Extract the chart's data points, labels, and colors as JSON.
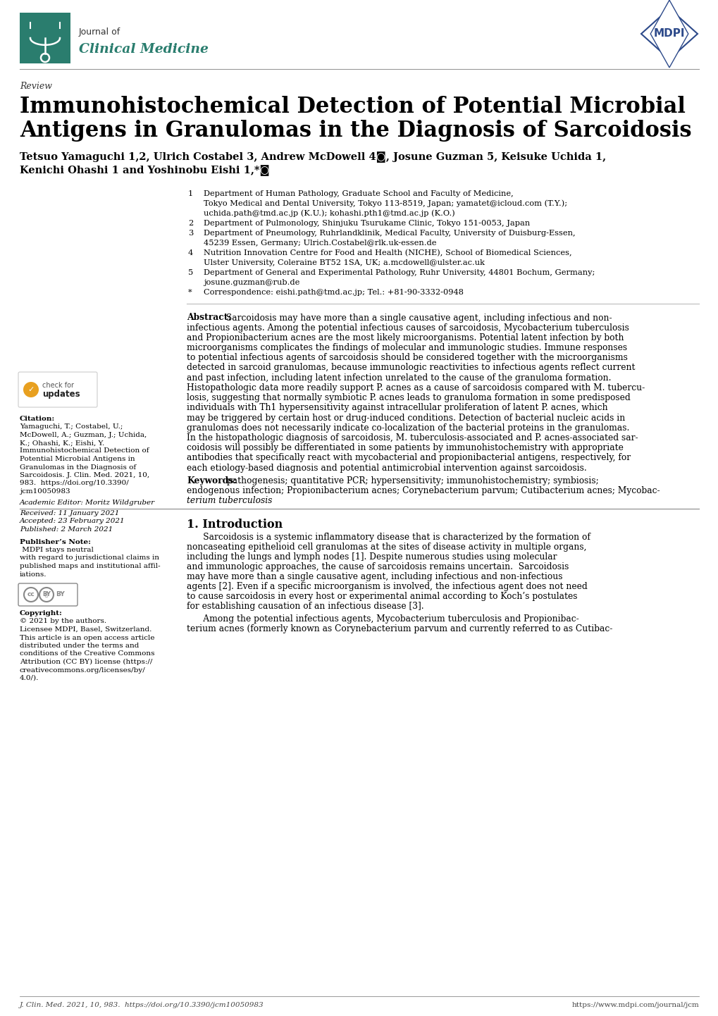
{
  "journal_name_top": "Journal of",
  "journal_name_bottom": "Clinical Medicine",
  "journal_color": "#2a7d6e",
  "mdpi_color": "#2d4a8a",
  "review_label": "Review",
  "title_line1": "Immunohistochemical Detection of Potential Microbial",
  "title_line2": "Antigens in Granulomas in the Diagnosis of Sarcoidosis",
  "authors_line1": "Tetsuo Yamaguchi 1,2, Ulrich Costabel 3, Andrew McDowell 4◙, Josune Guzman 5, Keisuke Uchida 1,",
  "authors_line2": "Kenichi Ohashi 1 and Yoshinobu Eishi 1,*◙",
  "aff1_num": "1",
  "aff1_text": "Department of Human Pathology, Graduate School and Faculty of Medicine,",
  "aff1_text2": "Tokyo Medical and Dental University, Tokyo 113-8519, Japan; yamatet@icloud.com (T.Y.);",
  "aff1_text3": "uchida.path@tmd.ac.jp (K.U.); kohashi.pth1@tmd.ac.jp (K.O.)",
  "aff2_num": "2",
  "aff2_text": "Department of Pulmonology, Shinjuku Tsurukame Clinic, Tokyo 151-0053, Japan",
  "aff3_num": "3",
  "aff3_text": "Department of Pneumology, Ruhrlandklinik, Medical Faculty, University of Duisburg-Essen,",
  "aff3_text2": "45239 Essen, Germany; Ulrich.Costabel@rlk.uk-essen.de",
  "aff4_num": "4",
  "aff4_text": "Nutrition Innovation Centre for Food and Health (NICHE), School of Biomedical Sciences,",
  "aff4_text2": "Ulster University, Coleraine BT52 1SA, UK; a.mcdowell@ulster.ac.uk",
  "aff5_num": "5",
  "aff5_text": "Department of General and Experimental Pathology, Ruhr University, 44801 Bochum, Germany;",
  "aff5_text2": "josune.guzman@rub.de",
  "aff_star_num": "*",
  "aff_star_text": "Correspondence: eishi.path@tmd.ac.jp; Tel.: +81-90-3332-0948",
  "abstract_label": "Abstract:",
  "abstract_body": "Sarcoidosis may have more than a single causative agent, including infectious and non-infectious agents. Among the potential infectious causes of sarcoidosis, Mycobacterium tuberculosis and Propionibacterium acnes are the most likely microorganisms. Potential latent infection by both microorganisms complicates the findings of molecular and immunologic studies. Immune responses to potential infectious agents of sarcoidosis should be considered together with the microorganisms detected in sarcoid granulomas, because immunologic reactivities to infectious agents reflect current and past infection, including latent infection unrelated to the cause of the granuloma formation. Histopathologic data more readily support P. acnes as a cause of sarcoidosis compared with M. tuberculosis, suggesting that normally symbiotic P. acnes leads to granuloma formation in some predisposed individuals with Th1 hypersensitivity against intracellular proliferation of latent P. acnes, which may be triggered by certain host or drug-induced conditions. Detection of bacterial nucleic acids in granulomas does not necessarily indicate co-localization of the bacterial proteins in the granulomas. In the histopathologic diagnosis of sarcoidosis, M. tuberculosis-associated and P. acnes-associated sarcoidosis will possibly be differentiated in some patients by immunohistochemistry with appropriate antibodies that specifically react with mycobacterial and propionibacterial antigens, respectively, for each etiology-based diagnosis and potential antimicrobial intervention against sarcoidosis.",
  "keywords_label": "Keywords:",
  "keywords_body": "pathogenesis; quantitative PCR; hypersensitivity; immunohistochemistry; symbiosis; endogenous infection; Propionibacterium acnes; Corynebacterium parvum; Cutibacterium acnes; Mycobacterium tuberculosis",
  "section1_title": "1. Introduction",
  "intro_p1": "Sarcoidosis is a systemic inflammatory disease that is characterized by the formation of noncaseating epithelioid cell granulomas at the sites of disease activity in multiple organs, including the lungs and lymph nodes [1]. Despite numerous studies using molecular and immunologic approaches, the cause of sarcoidosis remains uncertain.  Sarcoidosis may have more than a single causative agent, including infectious and non-infectious agents [2]. Even if a specific microorganism is involved, the infectious agent does not need to cause sarcoidosis in every host or experimental animal according to Koch’s postulates for establishing causation of an infectious disease [3].",
  "intro_p2": "Among the potential infectious agents, Mycobacterium tuberculosis and Propionibacterium acnes (formerly known as Corynebacterium parvum and currently referred to as Cutibac-",
  "sidebar_citation_bold": "Citation:",
  "sidebar_citation_text": " Yamaguchi, T.; Costabel, U.; McDowell, A.; Guzman, J.; Uchida, K.; Ohashi, K.; Eishi, Y. Immunohistochemical Detection of Potential Microbial Antigens in Granulomas in the Diagnosis of Sarcoidosis. J. Clin. Med. 2021, 10, 983.  https://doi.org/10.3390/jcm10050983",
  "sidebar_editor": "Academic Editor: Moritz Wildgruber",
  "sidebar_received": "Received: 11 January 2021",
  "sidebar_accepted": "Accepted: 23 February 2021",
  "sidebar_published": "Published: 2 March 2021",
  "sidebar_publisher_bold": "Publisher’s Note:",
  "sidebar_publisher_text": " MDPI stays neutral with regard to jurisdictional claims in published maps and institutional affil-iations.",
  "sidebar_copyright_bold": "Copyright:",
  "sidebar_copyright_text": " © 2021 by the authors. Licensee MDPI, Basel, Switzerland. This article is an open access article distributed under the terms and conditions of the Creative Commons Attribution (CC BY) license (https://creativecommons.org/licenses/by/4.0/).",
  "footer_left": "J. Clin. Med. 2021, 10, 983.  https://doi.org/10.3390/jcm10050983",
  "footer_right": "https://www.mdpi.com/journal/jcm",
  "teal": "#2a7d6e",
  "navy": "#2d4a8a",
  "black": "#000000",
  "gray": "#555555",
  "lightgray": "#aaaaaa",
  "white": "#ffffff"
}
